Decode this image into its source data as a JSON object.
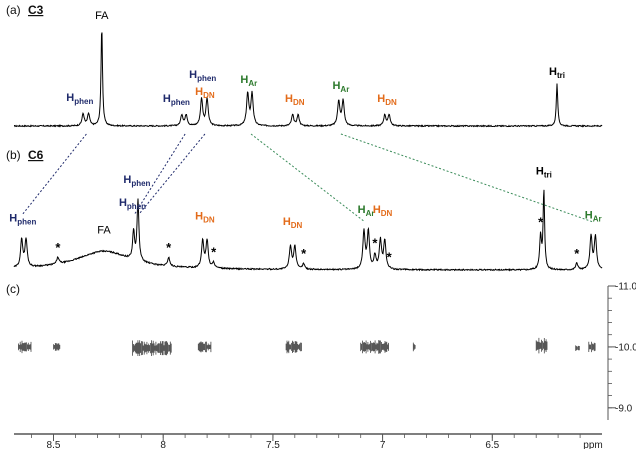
{
  "chart_data": {
    "type": "line",
    "title": "",
    "x_axis": {
      "label": "ppm",
      "reversed": true,
      "range": [
        8.68,
        6.0
      ],
      "ticks": [
        8.5,
        8,
        7.5,
        7,
        6.5
      ]
    },
    "colors": {
      "phen": "#1f2a6b",
      "DN": "#e36b1a",
      "Ar": "#2d7a2d",
      "tri": "#000000",
      "FA": "#000000",
      "spectrum": "#000000",
      "dosy": "#444444",
      "link_phen": "#1f2a6b",
      "link_ar": "#3b8c5a"
    },
    "panels": [
      {
        "id": "a",
        "label_prefix": "(a)",
        "label_compound": "C3",
        "type": "spectrum",
        "peaks": [
          {
            "ppm": 8.365,
            "height": 0.12,
            "width": 0.006
          },
          {
            "ppm": 8.34,
            "height": 0.12,
            "width": 0.006
          },
          {
            "ppm": 8.28,
            "height": 1.0,
            "width": 0.004
          },
          {
            "ppm": 7.915,
            "height": 0.11,
            "width": 0.006
          },
          {
            "ppm": 7.895,
            "height": 0.11,
            "width": 0.006
          },
          {
            "ppm": 7.825,
            "height": 0.27,
            "width": 0.006
          },
          {
            "ppm": 7.8,
            "height": 0.27,
            "width": 0.006
          },
          {
            "ppm": 7.615,
            "height": 0.32,
            "width": 0.006
          },
          {
            "ppm": 7.595,
            "height": 0.32,
            "width": 0.006
          },
          {
            "ppm": 7.41,
            "height": 0.11,
            "width": 0.006
          },
          {
            "ppm": 7.385,
            "height": 0.11,
            "width": 0.006
          },
          {
            "ppm": 7.2,
            "height": 0.25,
            "width": 0.006
          },
          {
            "ppm": 7.18,
            "height": 0.25,
            "width": 0.006
          },
          {
            "ppm": 6.99,
            "height": 0.11,
            "width": 0.006
          },
          {
            "ppm": 6.97,
            "height": 0.11,
            "width": 0.006
          },
          {
            "ppm": 6.205,
            "height": 0.42,
            "width": 0.004
          }
        ],
        "labels": [
          {
            "ppm": 8.38,
            "main": "H",
            "sub": "phen",
            "group": "phen",
            "height": 0.25
          },
          {
            "ppm": 8.28,
            "main": "FA",
            "sub": "",
            "group": "FA",
            "height": 1.07
          },
          {
            "ppm": 7.94,
            "main": "H",
            "sub": "phen",
            "group": "phen",
            "height": 0.24
          },
          {
            "ppm": 7.82,
            "main": "H",
            "sub": "phen",
            "group": "phen",
            "height": 0.48
          },
          {
            "ppm": 7.81,
            "main": "H",
            "sub": "DN",
            "group": "DN",
            "height": 0.31
          },
          {
            "ppm": 7.61,
            "main": "H",
            "sub": "Ar",
            "group": "Ar",
            "height": 0.43
          },
          {
            "ppm": 7.4,
            "main": "H",
            "sub": "DN",
            "group": "DN",
            "height": 0.24
          },
          {
            "ppm": 7.19,
            "main": "H",
            "sub": "Ar",
            "group": "Ar",
            "height": 0.37
          },
          {
            "ppm": 6.98,
            "main": "H",
            "sub": "DN",
            "group": "DN",
            "height": 0.24
          },
          {
            "ppm": 6.205,
            "main": "H",
            "sub": "tri",
            "group": "tri",
            "height": 0.51
          }
        ]
      },
      {
        "id": "b",
        "label_prefix": "(b)",
        "label_compound": "C6",
        "type": "spectrum",
        "peaks": [
          {
            "ppm": 8.645,
            "height": 0.25,
            "width": 0.006
          },
          {
            "ppm": 8.625,
            "height": 0.25,
            "width": 0.006
          },
          {
            "ppm": 8.48,
            "height": 0.06,
            "width": 0.006
          },
          {
            "ppm": 8.27,
            "height": 0.17,
            "width": 0.15
          },
          {
            "ppm": 8.135,
            "height": 0.26,
            "width": 0.005
          },
          {
            "ppm": 8.115,
            "height": 0.55,
            "width": 0.005
          },
          {
            "ppm": 7.975,
            "height": 0.08,
            "width": 0.006
          },
          {
            "ppm": 7.82,
            "height": 0.25,
            "width": 0.006
          },
          {
            "ppm": 7.8,
            "height": 0.25,
            "width": 0.006
          },
          {
            "ppm": 7.77,
            "height": 0.05,
            "width": 0.006
          },
          {
            "ppm": 7.42,
            "height": 0.21,
            "width": 0.006
          },
          {
            "ppm": 7.4,
            "height": 0.21,
            "width": 0.006
          },
          {
            "ppm": 7.36,
            "height": 0.05,
            "width": 0.006
          },
          {
            "ppm": 7.085,
            "height": 0.34,
            "width": 0.006
          },
          {
            "ppm": 7.065,
            "height": 0.34,
            "width": 0.006
          },
          {
            "ppm": 7.035,
            "height": 0.12,
            "width": 0.006
          },
          {
            "ppm": 7.01,
            "height": 0.26,
            "width": 0.006
          },
          {
            "ppm": 6.99,
            "height": 0.26,
            "width": 0.006
          },
          {
            "ppm": 6.28,
            "height": 0.3,
            "width": 0.005
          },
          {
            "ppm": 6.265,
            "height": 0.72,
            "width": 0.004
          },
          {
            "ppm": 6.115,
            "height": 0.06,
            "width": 0.006
          },
          {
            "ppm": 6.05,
            "height": 0.3,
            "width": 0.006
          },
          {
            "ppm": 6.03,
            "height": 0.3,
            "width": 0.006
          }
        ],
        "labels": [
          {
            "ppm": 8.64,
            "main": "H",
            "sub": "phen",
            "group": "phen",
            "height": 0.44
          },
          {
            "ppm": 8.12,
            "main": "H",
            "sub": "phen",
            "group": "phen",
            "height": 0.79
          },
          {
            "ppm": 8.14,
            "main": "H",
            "sub": "phen",
            "group": "phen",
            "height": 0.58
          },
          {
            "ppm": 8.27,
            "main": "FA",
            "sub": "",
            "group": "FA",
            "height": 0.33
          },
          {
            "ppm": 7.81,
            "main": "H",
            "sub": "DN",
            "group": "DN",
            "height": 0.46
          },
          {
            "ppm": 7.41,
            "main": "H",
            "sub": "DN",
            "group": "DN",
            "height": 0.41
          },
          {
            "ppm": 7.075,
            "main": "H",
            "sub": "Ar",
            "group": "Ar",
            "height": 0.52
          },
          {
            "ppm": 7.0,
            "main": "H",
            "sub": "DN",
            "group": "DN",
            "height": 0.52
          },
          {
            "ppm": 6.265,
            "main": "H",
            "sub": "tri",
            "group": "tri",
            "height": 0.87
          },
          {
            "ppm": 6.04,
            "main": "H",
            "sub": "Ar",
            "group": "Ar",
            "height": 0.47
          }
        ],
        "asterisks": [
          8.48,
          7.975,
          7.77,
          7.36,
          7.035,
          6.97,
          6.28,
          6.115
        ]
      },
      {
        "id": "c",
        "label_prefix": "(c)",
        "label_compound": "",
        "type": "dosy",
        "y_axis": {
          "range": [
            8.8,
            11.0
          ],
          "reversed": true,
          "ticks": [
            {
              "value": 11.0,
              "label": "-11.0"
            },
            {
              "value": 10.0,
              "label": "-10.0"
            },
            {
              "value": 9.0,
              "label": "-9.0"
            }
          ]
        },
        "bands": [
          {
            "ppm_start": 8.66,
            "ppm_end": 8.6,
            "center": 10.0,
            "half_height": 0.08
          },
          {
            "ppm_start": 8.5,
            "ppm_end": 8.47,
            "center": 10.0,
            "half_height": 0.07
          },
          {
            "ppm_start": 8.14,
            "ppm_end": 7.96,
            "center": 9.98,
            "half_height": 0.1
          },
          {
            "ppm_start": 7.84,
            "ppm_end": 7.78,
            "center": 10.0,
            "half_height": 0.07
          },
          {
            "ppm_start": 7.44,
            "ppm_end": 7.37,
            "center": 10.0,
            "half_height": 0.08
          },
          {
            "ppm_start": 7.1,
            "ppm_end": 6.97,
            "center": 10.0,
            "half_height": 0.09
          },
          {
            "ppm_start": 6.86,
            "ppm_end": 6.85,
            "center": 10.0,
            "half_height": 0.06
          },
          {
            "ppm_start": 6.3,
            "ppm_end": 6.25,
            "center": 10.02,
            "half_height": 0.1
          },
          {
            "ppm_start": 6.12,
            "ppm_end": 6.1,
            "center": 9.98,
            "half_height": 0.05
          },
          {
            "ppm_start": 6.06,
            "ppm_end": 6.03,
            "center": 10.0,
            "half_height": 0.07
          }
        ]
      }
    ],
    "correlations": [
      {
        "from_ppm": 8.35,
        "to_ppm": 8.64,
        "style": "phen"
      },
      {
        "from_ppm": 7.9,
        "to_ppm": 8.13,
        "style": "phen"
      },
      {
        "from_ppm": 7.81,
        "to_ppm": 8.11,
        "style": "phen"
      },
      {
        "from_ppm": 7.6,
        "to_ppm": 7.08,
        "style": "ar"
      },
      {
        "from_ppm": 7.19,
        "to_ppm": 6.04,
        "style": "ar"
      }
    ]
  }
}
